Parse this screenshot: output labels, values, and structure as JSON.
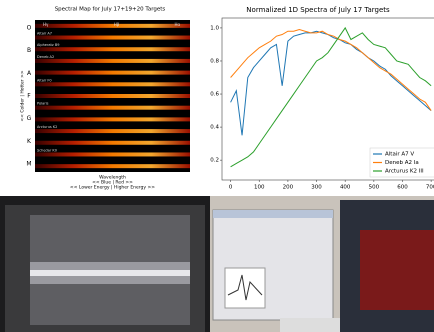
{
  "chart_data": [
    {
      "type": "spectral-map",
      "title": "Spectral Map for July 17+19+20 Targets",
      "categories": [
        null,
        "Altair A7",
        "Alpheratz B9",
        "Deneb A2",
        null,
        "Altair F0",
        null,
        "Polaris",
        null,
        "Arcturus K2",
        null,
        "Schedar K0",
        null
      ],
      "classes": [
        "O",
        "B",
        "A",
        "F",
        "G",
        "K",
        "M"
      ],
      "lines": [
        "Hγ",
        "Hβ",
        "Hα"
      ],
      "ylabel": "<< Colder | Hotter >>",
      "xlabels": [
        "Wavelength",
        "<< Blue | Red >>",
        "<< Lower Energy | Higher Energy >>"
      ]
    },
    {
      "type": "line",
      "title": "Normalized 1D Spectra of July 17 Targets",
      "x": [
        0,
        20,
        40,
        60,
        80,
        100,
        120,
        140,
        160,
        180,
        200,
        220,
        240,
        260,
        280,
        300,
        320,
        340,
        360,
        380,
        400,
        420,
        440,
        460,
        480,
        500,
        520,
        540,
        560,
        580,
        600,
        620,
        640,
        660,
        680,
        700
      ],
      "series": [
        {
          "name": "Altair A7 V",
          "color": "#1f77b4",
          "values": [
            0.55,
            0.62,
            0.35,
            0.7,
            0.76,
            0.8,
            0.84,
            0.88,
            0.9,
            0.65,
            0.92,
            0.95,
            0.96,
            0.97,
            0.97,
            0.98,
            0.97,
            0.96,
            0.94,
            0.93,
            0.91,
            0.9,
            0.87,
            0.85,
            0.82,
            0.8,
            0.77,
            0.75,
            0.71,
            0.68,
            0.65,
            0.62,
            0.59,
            0.56,
            0.53,
            0.5
          ]
        },
        {
          "name": "Deneb A2 Ia",
          "color": "#ff7f0e",
          "values": [
            0.7,
            0.74,
            0.78,
            0.82,
            0.85,
            0.88,
            0.9,
            0.92,
            0.95,
            0.96,
            0.98,
            0.98,
            0.99,
            0.98,
            0.97,
            0.97,
            0.98,
            0.96,
            0.95,
            0.93,
            0.92,
            0.9,
            0.88,
            0.85,
            0.82,
            0.79,
            0.76,
            0.74,
            0.72,
            0.69,
            0.66,
            0.63,
            0.6,
            0.57,
            0.55,
            0.5
          ]
        },
        {
          "name": "Arcturus K2 III",
          "color": "#2ca02c",
          "values": [
            0.16,
            0.18,
            0.2,
            0.22,
            0.25,
            0.3,
            0.35,
            0.4,
            0.45,
            0.5,
            0.55,
            0.6,
            0.65,
            0.7,
            0.75,
            0.8,
            0.82,
            0.85,
            0.9,
            0.95,
            1.0,
            0.93,
            0.95,
            0.97,
            0.93,
            0.9,
            0.89,
            0.88,
            0.84,
            0.8,
            0.79,
            0.78,
            0.74,
            0.7,
            0.68,
            0.65
          ]
        }
      ],
      "xlim": [
        -30,
        710
      ],
      "ylim": [
        0.08,
        1.06
      ],
      "xticks": [
        0,
        100,
        200,
        300,
        400,
        500,
        600,
        700
      ],
      "yticks": [
        0.2,
        0.4,
        0.6,
        0.8,
        {
          "value": 1.0,
          "label": "1.0"
        }
      ],
      "legend": "lower right"
    }
  ]
}
